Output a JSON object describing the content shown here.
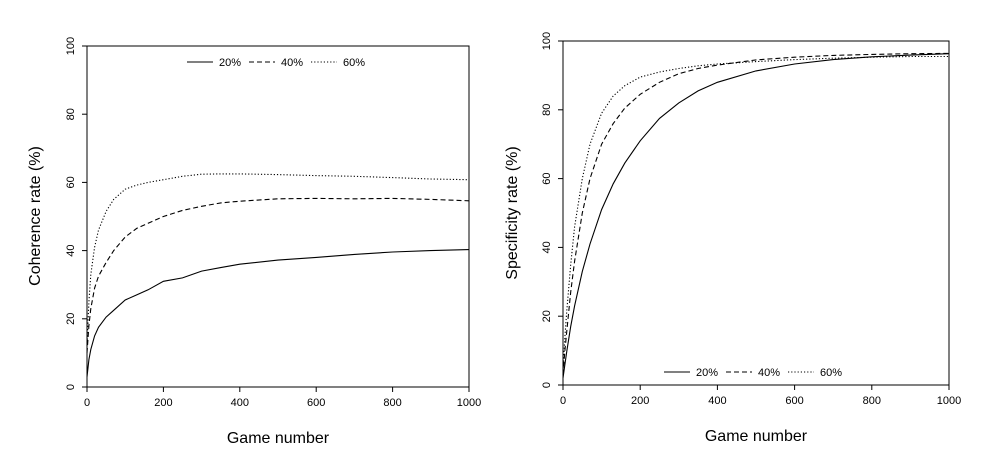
{
  "chart_data": [
    {
      "type": "line",
      "title": "",
      "xlabel": "Game number",
      "ylabel": "Coherence rate (%)",
      "xlim": [
        0,
        1000
      ],
      "ylim": [
        0,
        100
      ],
      "xticks": [
        "0",
        "200",
        "400",
        "600",
        "800",
        "1000"
      ],
      "yticks": [
        "0",
        "20",
        "40",
        "60",
        "80",
        "100"
      ],
      "grid": false,
      "legend_position": "top-center",
      "series": [
        {
          "name": "20%",
          "line_style": "solid",
          "x": [
            0,
            5,
            10,
            20,
            30,
            50,
            70,
            100,
            130,
            160,
            200,
            250,
            300,
            350,
            400,
            500,
            600,
            700,
            800,
            900,
            1000
          ],
          "y": [
            3,
            8,
            11,
            15,
            17.5,
            20.5,
            22.5,
            25.5,
            27,
            28.5,
            31,
            32,
            34,
            35,
            36,
            37.2,
            38,
            38.9,
            39.6,
            40,
            40.3
          ]
        },
        {
          "name": "40%",
          "line_style": "dashed",
          "x": [
            0,
            5,
            10,
            20,
            30,
            50,
            70,
            100,
            130,
            160,
            200,
            250,
            300,
            350,
            400,
            500,
            600,
            700,
            800,
            900,
            1000
          ],
          "y": [
            10,
            18,
            23,
            29,
            32.5,
            36.5,
            40,
            44,
            46.5,
            48,
            50,
            51.8,
            53,
            54,
            54.5,
            55.2,
            55.3,
            55.2,
            55.3,
            55,
            54.6
          ]
        },
        {
          "name": "60%",
          "line_style": "dotted",
          "x": [
            0,
            5,
            10,
            20,
            30,
            50,
            70,
            100,
            130,
            160,
            200,
            250,
            300,
            350,
            400,
            500,
            600,
            700,
            800,
            900,
            1000
          ],
          "y": [
            12,
            25,
            33,
            41,
            46,
            51.5,
            55,
            58,
            59.2,
            60,
            60.8,
            61.8,
            62.4,
            62.5,
            62.5,
            62.3,
            62,
            61.8,
            61.4,
            61,
            60.8
          ]
        }
      ]
    },
    {
      "type": "line",
      "title": "",
      "xlabel": "Game number",
      "ylabel": "Specificity rate (%)",
      "xlim": [
        0,
        1000
      ],
      "ylim": [
        0,
        100
      ],
      "xticks": [
        "0",
        "200",
        "400",
        "600",
        "800",
        "1000"
      ],
      "yticks": [
        "0",
        "20",
        "40",
        "60",
        "80",
        "100"
      ],
      "grid": false,
      "legend_position": "bottom-center",
      "series": [
        {
          "name": "20%",
          "line_style": "solid",
          "x": [
            0,
            5,
            10,
            20,
            30,
            50,
            70,
            100,
            130,
            160,
            200,
            250,
            300,
            350,
            400,
            500,
            600,
            700,
            800,
            900,
            1000
          ],
          "y": [
            2,
            6,
            10,
            17,
            23,
            33,
            41,
            51,
            58.5,
            64.5,
            71,
            77.5,
            82,
            85.5,
            88,
            91.3,
            93.3,
            94.6,
            95.4,
            95.9,
            96.3
          ]
        },
        {
          "name": "40%",
          "line_style": "dashed",
          "x": [
            0,
            5,
            10,
            20,
            30,
            50,
            70,
            100,
            130,
            160,
            200,
            250,
            300,
            350,
            400,
            500,
            600,
            700,
            800,
            900,
            1000
          ],
          "y": [
            3,
            10,
            16,
            27,
            36,
            50,
            60,
            70,
            76,
            80.5,
            84.5,
            88,
            90.5,
            92,
            93,
            94.5,
            95.3,
            95.8,
            96.1,
            96.3,
            96.4
          ]
        },
        {
          "name": "60%",
          "line_style": "dotted",
          "x": [
            0,
            5,
            10,
            20,
            30,
            50,
            70,
            100,
            130,
            160,
            200,
            250,
            300,
            350,
            400,
            500,
            600,
            700,
            800,
            900,
            1000
          ],
          "y": [
            4,
            14,
            22,
            35,
            46,
            60,
            70,
            79,
            84,
            87,
            89.5,
            91,
            92,
            92.8,
            93.3,
            94,
            94.6,
            95,
            95.3,
            95.5,
            95.5
          ]
        }
      ]
    }
  ]
}
